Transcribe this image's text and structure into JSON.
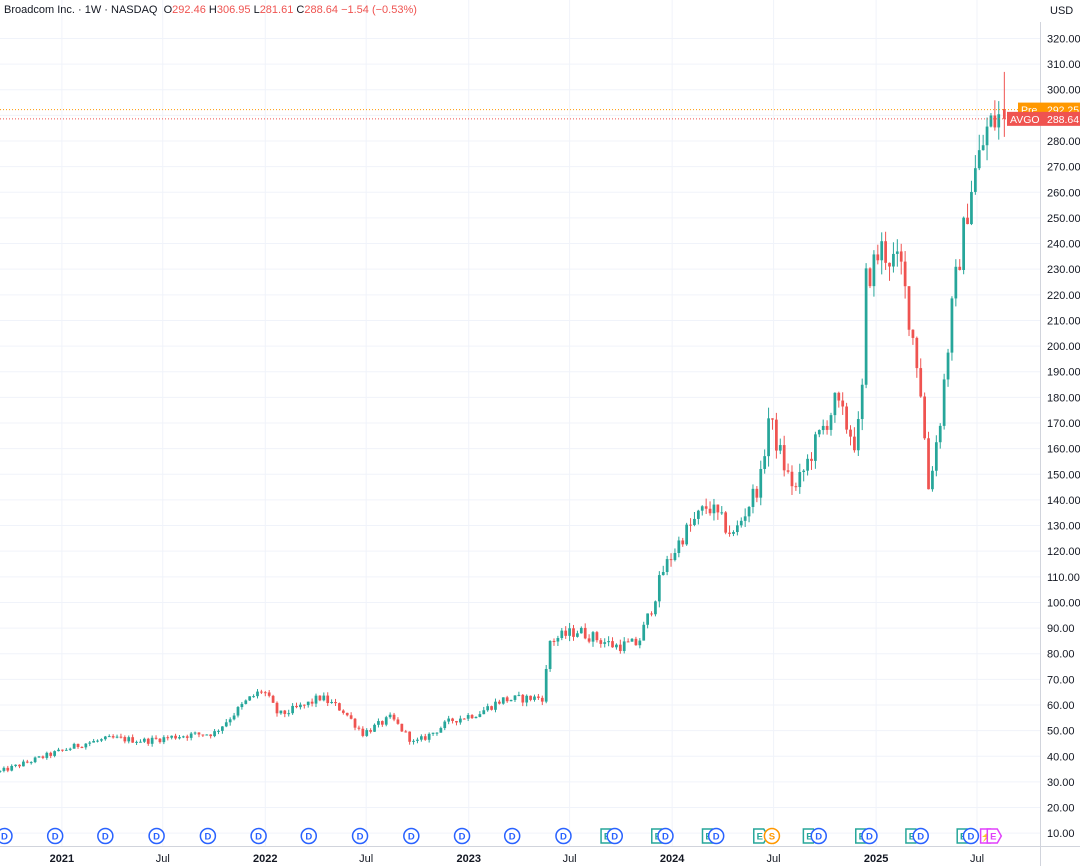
{
  "header": {
    "title": "Broadcom Inc.",
    "interval": "1W",
    "exchange": "NASDAQ",
    "ohlc": {
      "o": "292.46",
      "h": "306.95",
      "l": "281.61",
      "c": "288.64",
      "change": "−1.54 (−0.53%)"
    }
  },
  "price_axis": {
    "currency": "USD"
  },
  "markers": {
    "pre": {
      "label": "Pre",
      "value": "292.25",
      "price": 292.25,
      "color": "#ff9800"
    },
    "last": {
      "label": "AVGO",
      "value": "288.64",
      "price": 288.64,
      "color": "#ef5350"
    }
  },
  "colors": {
    "up": "#26a69a",
    "down": "#ef5350",
    "grid": "#f0f3fa",
    "text": "#131722",
    "dividend": "#2962ff",
    "earnings": "#26a69a",
    "split": "#ff9800",
    "event": "#e040fb"
  },
  "chart_data": {
    "type": "candlestick",
    "ylim": [
      5,
      335
    ],
    "yticks": [
      10,
      20,
      30,
      40,
      50,
      60,
      70,
      80,
      90,
      100,
      110,
      120,
      130,
      140,
      150,
      160,
      170,
      180,
      190,
      200,
      210,
      220,
      230,
      240,
      250,
      260,
      270,
      280,
      290,
      300,
      310,
      320
    ],
    "xlim": [
      "2020-09-12",
      "2025-10-22"
    ],
    "x_ticks": [
      {
        "date": "2021-01-01",
        "label": "2021",
        "bold": true
      },
      {
        "date": "2021-07-01",
        "label": "Jul",
        "bold": false
      },
      {
        "date": "2022-01-01",
        "label": "2022",
        "bold": true
      },
      {
        "date": "2022-07-01",
        "label": "Jul",
        "bold": false
      },
      {
        "date": "2023-01-01",
        "label": "2023",
        "bold": true
      },
      {
        "date": "2023-07-01",
        "label": "Jul",
        "bold": false
      },
      {
        "date": "2024-01-01",
        "label": "2024",
        "bold": true
      },
      {
        "date": "2024-07-01",
        "label": "Jul",
        "bold": false
      },
      {
        "date": "2025-01-01",
        "label": "2025",
        "bold": true
      },
      {
        "date": "2025-07-01",
        "label": "Jul",
        "bold": false
      }
    ],
    "path": [
      [
        "2020-09-12",
        34
      ],
      [
        "2020-12-01",
        40
      ],
      [
        "2021-02-10",
        45
      ],
      [
        "2021-04-01",
        47
      ],
      [
        "2021-06-01",
        46
      ],
      [
        "2021-08-01",
        48
      ],
      [
        "2021-10-01",
        49
      ],
      [
        "2021-12-01",
        62
      ],
      [
        "2021-12-28",
        66
      ],
      [
        "2022-01-25",
        56
      ],
      [
        "2022-03-15",
        60
      ],
      [
        "2022-04-10",
        63
      ],
      [
        "2022-05-20",
        58
      ],
      [
        "2022-06-25",
        49
      ],
      [
        "2022-08-15",
        55
      ],
      [
        "2022-09-25",
        45
      ],
      [
        "2022-10-20",
        48
      ],
      [
        "2022-12-01",
        54
      ],
      [
        "2023-01-20",
        57
      ],
      [
        "2023-03-01",
        62
      ],
      [
        "2023-05-15",
        63
      ],
      [
        "2023-05-26",
        85
      ],
      [
        "2023-07-15",
        89
      ],
      [
        "2023-09-20",
        83
      ],
      [
        "2023-11-01",
        84
      ],
      [
        "2023-11-25",
        98
      ],
      [
        "2023-12-15",
        112
      ],
      [
        "2024-01-20",
        126
      ],
      [
        "2024-03-05",
        138
      ],
      [
        "2024-04-20",
        126
      ],
      [
        "2024-06-08",
        148
      ],
      [
        "2024-06-22",
        172
      ],
      [
        "2024-07-25",
        150
      ],
      [
        "2024-08-10",
        144
      ],
      [
        "2024-09-10",
        160
      ],
      [
        "2024-10-20",
        178
      ],
      [
        "2024-11-25",
        162
      ],
      [
        "2024-12-06",
        175
      ],
      [
        "2024-12-13",
        225
      ],
      [
        "2025-01-10",
        238
      ],
      [
        "2025-02-15",
        230
      ],
      [
        "2025-03-20",
        188
      ],
      [
        "2025-04-05",
        145
      ],
      [
        "2025-04-25",
        170
      ],
      [
        "2025-05-20",
        220
      ],
      [
        "2025-06-20",
        262
      ],
      [
        "2025-07-20",
        285
      ],
      [
        "2025-08-12",
        290
      ]
    ],
    "last_bar": {
      "date": "2025-08-19",
      "o": 292.46,
      "h": 306.95,
      "l": 281.61,
      "c": 288.64
    },
    "events": [
      {
        "date": "2020-09-20",
        "type": "dividend",
        "label": "D"
      },
      {
        "date": "2020-12-20",
        "type": "dividend",
        "label": "D"
      },
      {
        "date": "2021-03-20",
        "type": "dividend",
        "label": "D"
      },
      {
        "date": "2021-06-20",
        "type": "dividend",
        "label": "D"
      },
      {
        "date": "2021-09-20",
        "type": "dividend",
        "label": "D"
      },
      {
        "date": "2021-12-20",
        "type": "dividend",
        "label": "D"
      },
      {
        "date": "2022-03-20",
        "type": "dividend",
        "label": "D"
      },
      {
        "date": "2022-06-20",
        "type": "dividend",
        "label": "D"
      },
      {
        "date": "2022-09-20",
        "type": "dividend",
        "label": "D"
      },
      {
        "date": "2022-12-20",
        "type": "dividend",
        "label": "D"
      },
      {
        "date": "2023-03-20",
        "type": "dividend",
        "label": "D"
      },
      {
        "date": "2023-06-20",
        "type": "dividend",
        "label": "D"
      },
      {
        "date": "2023-09-08",
        "type": "earnings",
        "label": "E"
      },
      {
        "date": "2023-09-20",
        "type": "dividend",
        "label": "D"
      },
      {
        "date": "2023-12-08",
        "type": "earnings",
        "label": "E"
      },
      {
        "date": "2023-12-20",
        "type": "dividend",
        "label": "D"
      },
      {
        "date": "2024-03-08",
        "type": "earnings",
        "label": "E"
      },
      {
        "date": "2024-03-20",
        "type": "dividend",
        "label": "D"
      },
      {
        "date": "2024-06-08",
        "type": "earnings",
        "label": "E"
      },
      {
        "date": "2024-06-28",
        "type": "split",
        "label": "S"
      },
      {
        "date": "2024-09-05",
        "type": "earnings",
        "label": "E"
      },
      {
        "date": "2024-09-20",
        "type": "dividend",
        "label": "D"
      },
      {
        "date": "2024-12-08",
        "type": "earnings",
        "label": "E"
      },
      {
        "date": "2024-12-20",
        "type": "dividend",
        "label": "D"
      },
      {
        "date": "2025-03-08",
        "type": "earnings",
        "label": "E"
      },
      {
        "date": "2025-03-22",
        "type": "dividend",
        "label": "D"
      },
      {
        "date": "2025-06-08",
        "type": "earnings",
        "label": "E"
      },
      {
        "date": "2025-06-20",
        "type": "dividend",
        "label": "D"
      },
      {
        "date": "2025-07-20",
        "type": "event",
        "label": "⚡"
      },
      {
        "date": "2025-08-01",
        "type": "event",
        "label": "E"
      }
    ]
  }
}
